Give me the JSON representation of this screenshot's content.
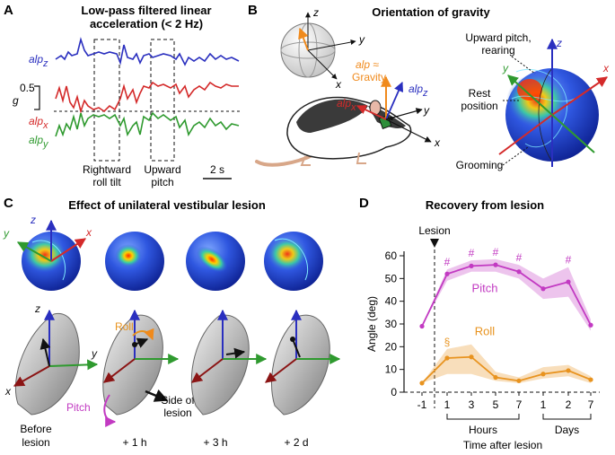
{
  "panel_a": {
    "letter": "A",
    "title_line1": "Low-pass filtered linear",
    "title_line2": "acceleration (< 2 Hz)",
    "trace_labels": {
      "z": "alp",
      "z_sub": "z",
      "x": "alp",
      "x_sub": "x",
      "y": "alp",
      "y_sub": "y"
    },
    "scale_value": "0.5",
    "scale_unit": "g",
    "event1_line1": "Rightward",
    "event1_line2": "roll tilt",
    "event2_line1": "Upward",
    "event2_line2": "pitch",
    "time_scale": "2 s",
    "colors": {
      "z": "#2a2fbf",
      "x": "#d42a2a",
      "y": "#2f9a2f"
    }
  },
  "panel_b": {
    "letter": "B",
    "title": "Orientation of gravity",
    "axes": {
      "x": "x",
      "y": "y",
      "z": "z"
    },
    "gravity_line1": "alp ≈",
    "gravity_line2": "Gravity",
    "alp_x": "alp",
    "alp_x_sub": "x",
    "alp_z": "alp",
    "alp_z_sub": "z",
    "labels": {
      "upward_line1": "Upward pitch,",
      "upward_line2": "rearing",
      "rest_line1": "Rest",
      "rest_line2": "position",
      "grooming": "Grooming"
    },
    "colors": {
      "gravity": "#f08a1c",
      "z": "#2a2fbf",
      "x": "#d42a2a",
      "y": "#2f9a2f"
    }
  },
  "panel_c": {
    "letter": "C",
    "title": "Effect of unilateral vestibular lesion",
    "axes": {
      "x": "x",
      "y": "y",
      "z": "z"
    },
    "roll": "Roll",
    "pitch": "Pitch",
    "side_line1": "Side of",
    "side_line2": "lesion",
    "conditions": [
      {
        "line1": "Before",
        "line2": "lesion"
      },
      {
        "line1": "+ 1 h",
        "line2": ""
      },
      {
        "line1": "+ 3 h",
        "line2": ""
      },
      {
        "line1": "+ 2 d",
        "line2": ""
      }
    ]
  },
  "panel_d": {
    "letter": "D",
    "title": "Recovery from lesion",
    "lesion": "Lesion",
    "group_hours": "Hours",
    "group_days": "Days",
    "markers": {
      "hash": "#",
      "section": "§"
    }
  },
  "chart_data": {
    "type": "line",
    "title": "Recovery from lesion",
    "xlabel": "Time after lesion",
    "ylabel": "Angle (deg)",
    "ylim": [
      0,
      60
    ],
    "yticks": [
      0,
      10,
      20,
      30,
      40,
      50,
      60
    ],
    "categories": [
      "-1",
      "1",
      "3",
      "5",
      "7",
      "1",
      "2",
      "7"
    ],
    "category_groups": [
      "",
      "Hours",
      "Hours",
      "Hours",
      "Hours",
      "Days",
      "Days",
      "Days"
    ],
    "grid": false,
    "series": [
      {
        "name": "Pitch",
        "color": "#c23ac2",
        "values": [
          29,
          52,
          55.5,
          56,
          53,
          45.5,
          48.5,
          29.5
        ],
        "lower": [
          29,
          49,
          53,
          53,
          50,
          41,
          42,
          27
        ],
        "upper": [
          29,
          54,
          58,
          58.5,
          56,
          50,
          55,
          32
        ],
        "significance": [
          "",
          "#",
          "#",
          "#",
          "#",
          "",
          "#",
          ""
        ]
      },
      {
        "name": "Roll",
        "color": "#e8931f",
        "values": [
          4,
          15,
          15.5,
          6.5,
          5,
          8,
          9.5,
          5.5
        ],
        "lower": [
          4,
          8,
          8,
          5,
          4,
          6,
          7,
          4
        ],
        "upper": [
          4,
          19,
          21,
          9,
          6.5,
          11,
          12,
          7
        ],
        "significance": [
          "",
          "§",
          "",
          "",
          "",
          "",
          "",
          ""
        ]
      }
    ]
  }
}
